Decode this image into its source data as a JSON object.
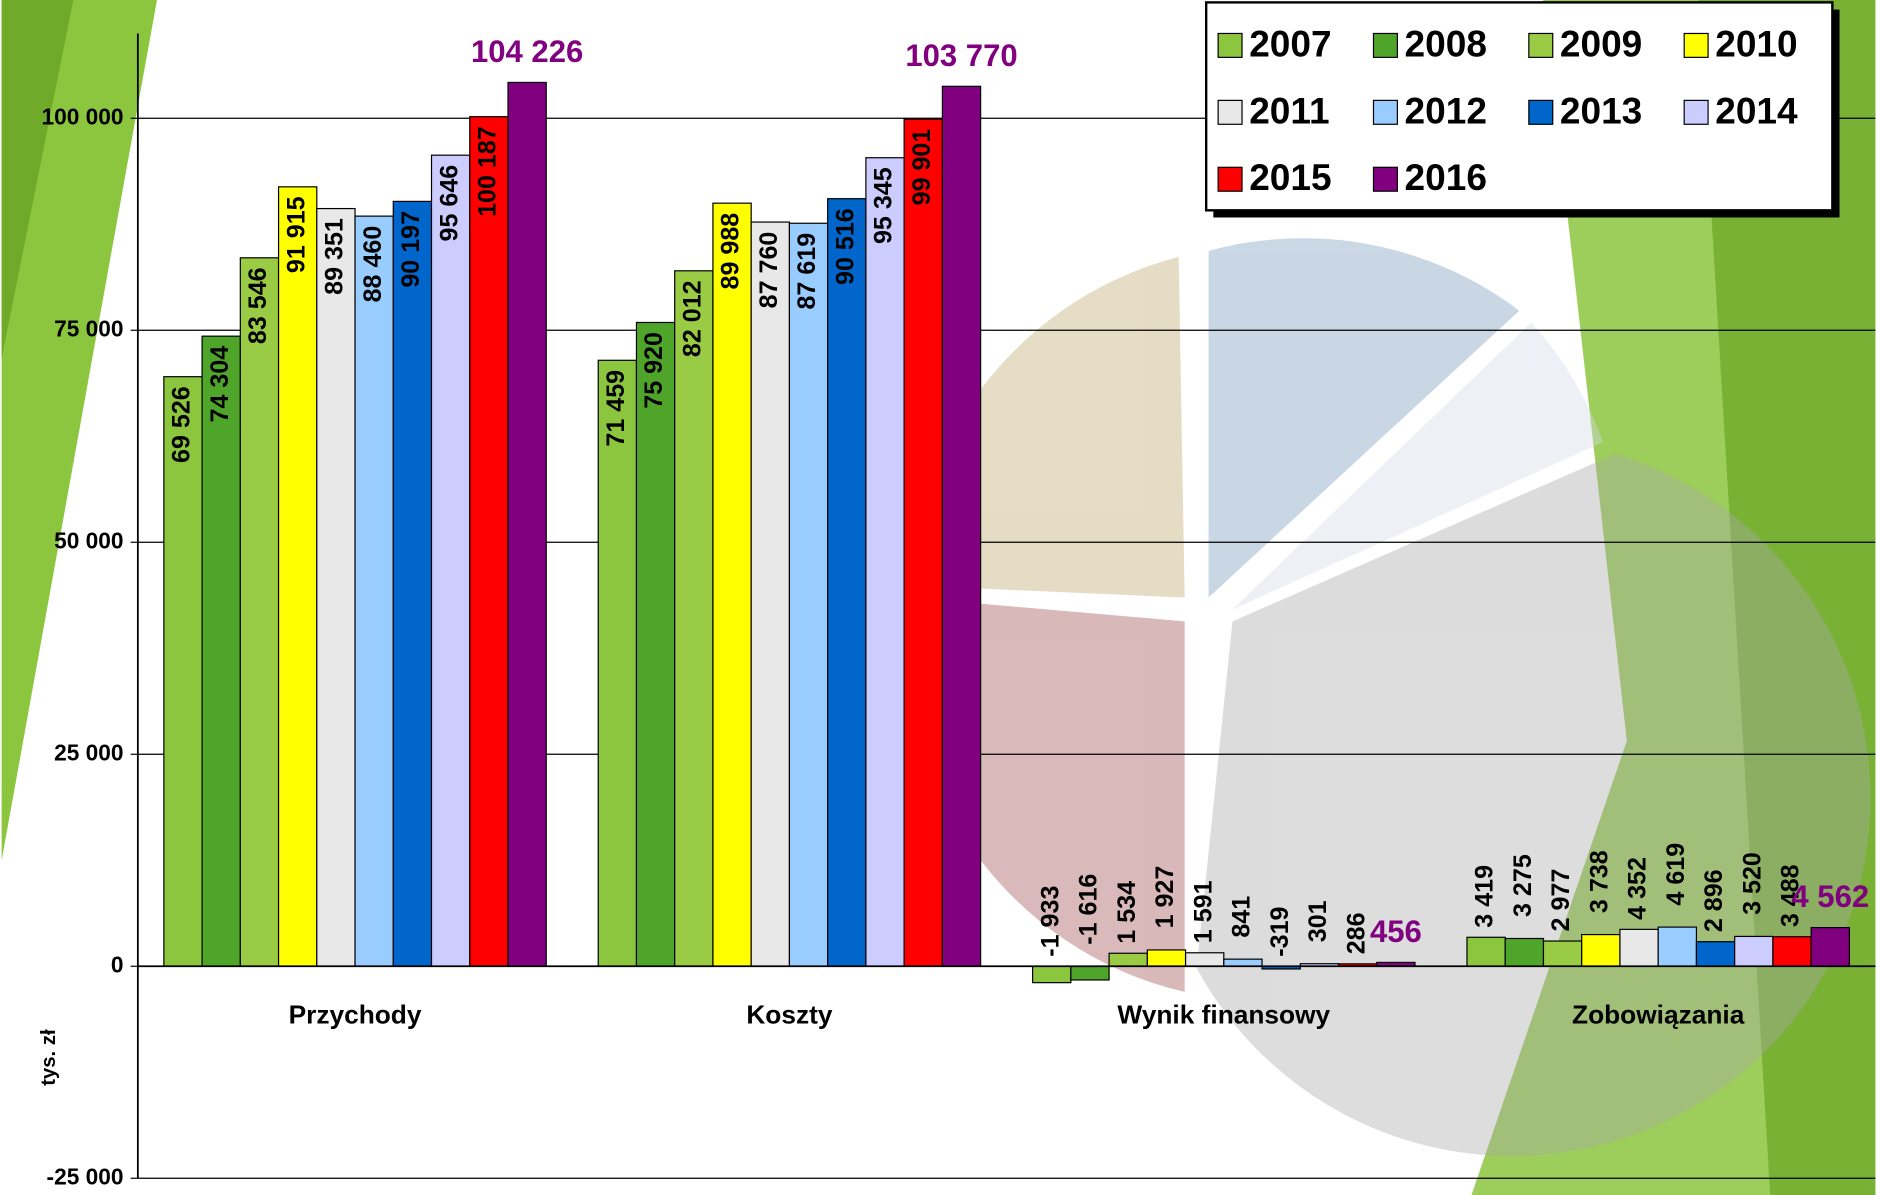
{
  "chart_data": {
    "type": "bar",
    "y_label": "tys. zł",
    "categories": [
      "Przychody",
      "Koszty",
      "Wynik finansowy",
      "Zobowiązania"
    ],
    "series": [
      {
        "name": "2007",
        "color": "#8cc63e",
        "values": [
          69526,
          71459,
          -1933,
          3419
        ],
        "value_labels": [
          "69 526",
          "71 459",
          "-1 933",
          "3 419"
        ]
      },
      {
        "name": "2008",
        "color": "#4fa52a",
        "values": [
          74304,
          75920,
          -1616,
          3275
        ],
        "value_labels": [
          "74 304",
          "75 920",
          "-1 616",
          "3 275"
        ]
      },
      {
        "name": "2009",
        "color": "#99cc44",
        "values": [
          83546,
          82012,
          1534,
          2977
        ],
        "value_labels": [
          "83 546",
          "82 012",
          "1 534",
          "2 977"
        ]
      },
      {
        "name": "2010",
        "color": "#ffff00",
        "values": [
          91915,
          89988,
          1927,
          3738
        ],
        "value_labels": [
          "91 915",
          "89 988",
          "1 927",
          "3 738"
        ]
      },
      {
        "name": "2011",
        "color": "#e8e8e8",
        "values": [
          89351,
          87760,
          1591,
          4352
        ],
        "value_labels": [
          "89 351",
          "87 760",
          "1 591",
          "4 352"
        ]
      },
      {
        "name": "2012",
        "color": "#99ccff",
        "values": [
          88460,
          87619,
          841,
          4619
        ],
        "value_labels": [
          "88 460",
          "87 619",
          "841",
          "4 619"
        ]
      },
      {
        "name": "2013",
        "color": "#0066cc",
        "values": [
          90197,
          90516,
          -319,
          2896
        ],
        "value_labels": [
          "90 197",
          "90 516",
          "-319",
          "2 896"
        ]
      },
      {
        "name": "2014",
        "color": "#ccccff",
        "values": [
          95646,
          95345,
          301,
          3520
        ],
        "value_labels": [
          "95 646",
          "95 345",
          "301",
          "3 520"
        ]
      },
      {
        "name": "2015",
        "color": "#ff0000",
        "values": [
          100187,
          99901,
          286,
          3488
        ],
        "value_labels": [
          "100 187",
          "99 901",
          "286",
          "3 488"
        ]
      },
      {
        "name": "2016",
        "color": "#800080",
        "values": [
          104226,
          103770,
          456,
          4562
        ],
        "value_labels": [
          "104 226",
          "103 770",
          "456",
          "4 562"
        ]
      }
    ],
    "ylim": [
      -25000,
      110000
    ],
    "yticks": [
      {
        "value": -25000,
        "label": "-25 000"
      },
      0,
      {
        "value": 25000,
        "label": "25 000"
      },
      {
        "value": 50000,
        "label": "50 000"
      },
      {
        "value": 75000,
        "label": "75 000"
      },
      {
        "value": 100000,
        "label": "100 000"
      }
    ],
    "grid": true
  }
}
